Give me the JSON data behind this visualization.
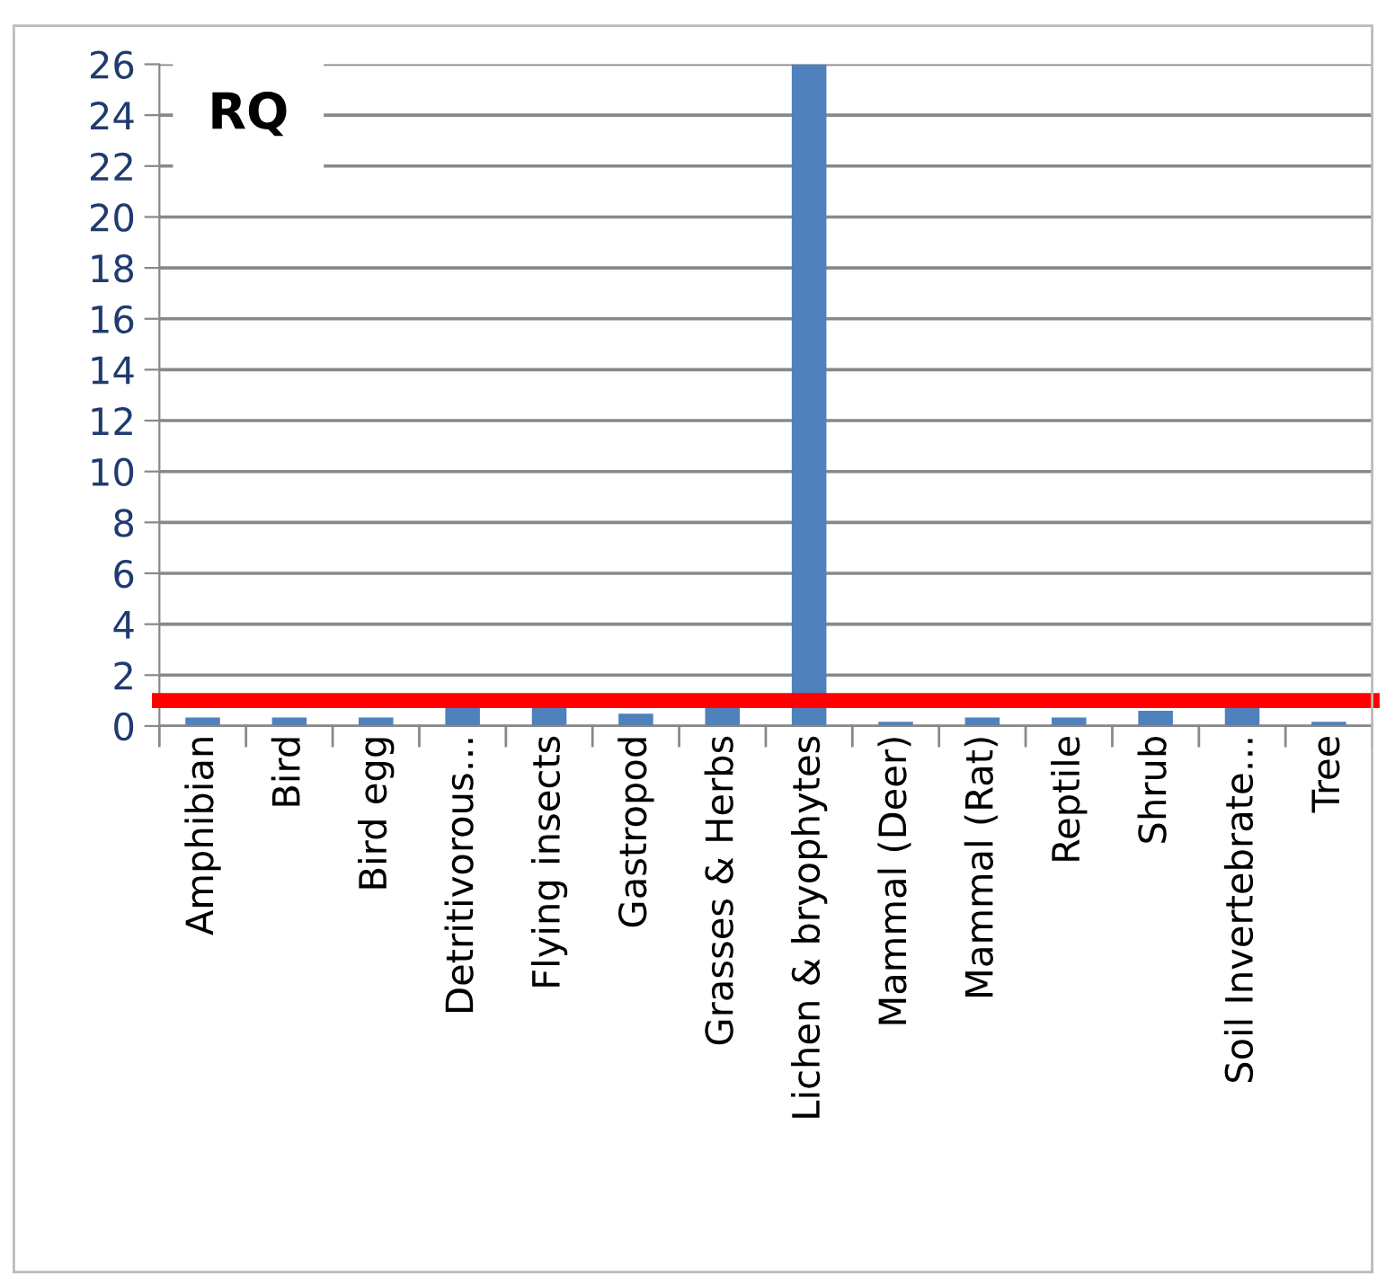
{
  "chart_data": {
    "type": "bar",
    "title": "RQ",
    "categories": [
      "Amphibian",
      "Bird",
      "Bird egg",
      "Detritivorous…",
      "Flying insects",
      "Gastropod",
      "Grasses & Herbs",
      "Lichen & bryophytes",
      "Mammal (Deer)",
      "Mammal (Rat)",
      "Reptile",
      "Shrub",
      "Soil Invertebrate…",
      "Tree"
    ],
    "values": [
      0.33,
      0.33,
      0.33,
      0.75,
      0.8,
      0.48,
      0.75,
      26,
      0.17,
      0.33,
      0.33,
      0.6,
      0.75,
      0.17
    ],
    "color": "#4f81bd",
    "ylim": [
      0,
      26
    ],
    "yticks": [
      0,
      2,
      4,
      6,
      8,
      10,
      12,
      14,
      16,
      18,
      20,
      22,
      24,
      26
    ],
    "grid": "y",
    "ref_lines": [
      {
        "axis": "y",
        "value": 1,
        "color": "#ff0000"
      }
    ]
  }
}
